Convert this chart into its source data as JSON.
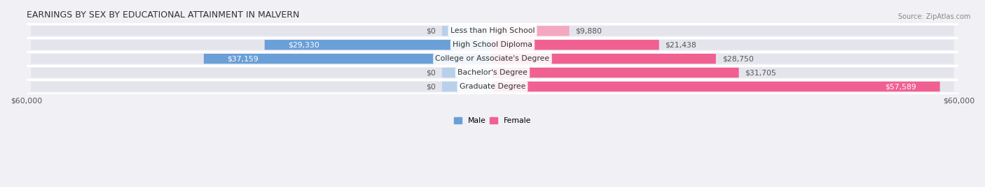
{
  "title": "EARNINGS BY SEX BY EDUCATIONAL ATTAINMENT IN MALVERN",
  "source": "Source: ZipAtlas.com",
  "categories": [
    "Less than High School",
    "High School Diploma",
    "College or Associate's Degree",
    "Bachelor's Degree",
    "Graduate Degree"
  ],
  "male_values": [
    0,
    29330,
    37159,
    0,
    0
  ],
  "female_values": [
    9880,
    21438,
    28750,
    31705,
    57589
  ],
  "male_labels": [
    "$0",
    "$29,330",
    "$37,159",
    "$0",
    "$0"
  ],
  "female_labels": [
    "$9,880",
    "$21,438",
    "$28,750",
    "$31,705",
    "$57,589"
  ],
  "male_color_full": "#6a9fd8",
  "male_color_zero": "#b8d0ea",
  "female_color_full": "#f06090",
  "female_color_zero": "#f4a8bf",
  "label_color_inside": "#ffffff",
  "label_color_outside": "#555555",
  "background_color": "#f0f0f5",
  "bar_bg_color": "#e4e4ec",
  "separator_color": "#ffffff",
  "xlim": 60000,
  "zero_bar_width": 6500,
  "bar_height": 0.72,
  "legend_male": "Male",
  "legend_female": "Female",
  "title_fontsize": 9,
  "label_fontsize": 7.8,
  "axis_fontsize": 7.8,
  "source_fontsize": 7
}
